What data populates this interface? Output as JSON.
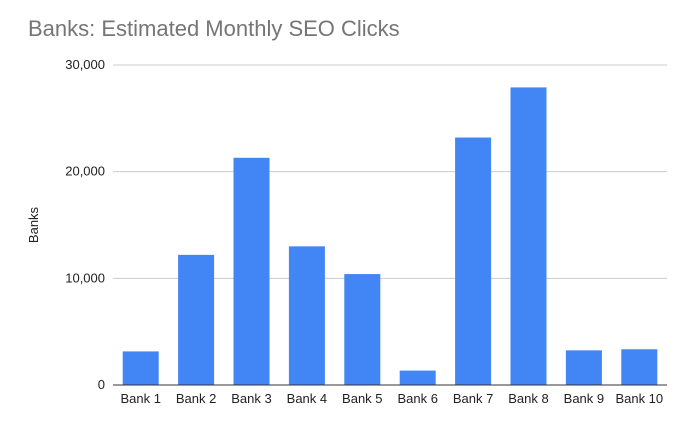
{
  "chart_data": {
    "type": "bar",
    "title": "Banks: Estimated Monthly SEO Clicks",
    "xlabel": "",
    "ylabel": "Banks",
    "categories": [
      "Bank 1",
      "Bank 2",
      "Bank 3",
      "Bank 4",
      "Bank 5",
      "Bank 6",
      "Bank 7",
      "Bank 8",
      "Bank 9",
      "Bank 10"
    ],
    "values": [
      3150,
      12200,
      21300,
      13000,
      10400,
      1350,
      23200,
      27900,
      3250,
      3350
    ],
    "ylim": [
      0,
      30000
    ],
    "yticks": [
      0,
      10000,
      20000,
      30000
    ],
    "ytick_labels": [
      "0",
      "10,000",
      "20,000",
      "30,000"
    ],
    "grid": true,
    "legend": "none",
    "bar_color": "#4285f4"
  }
}
